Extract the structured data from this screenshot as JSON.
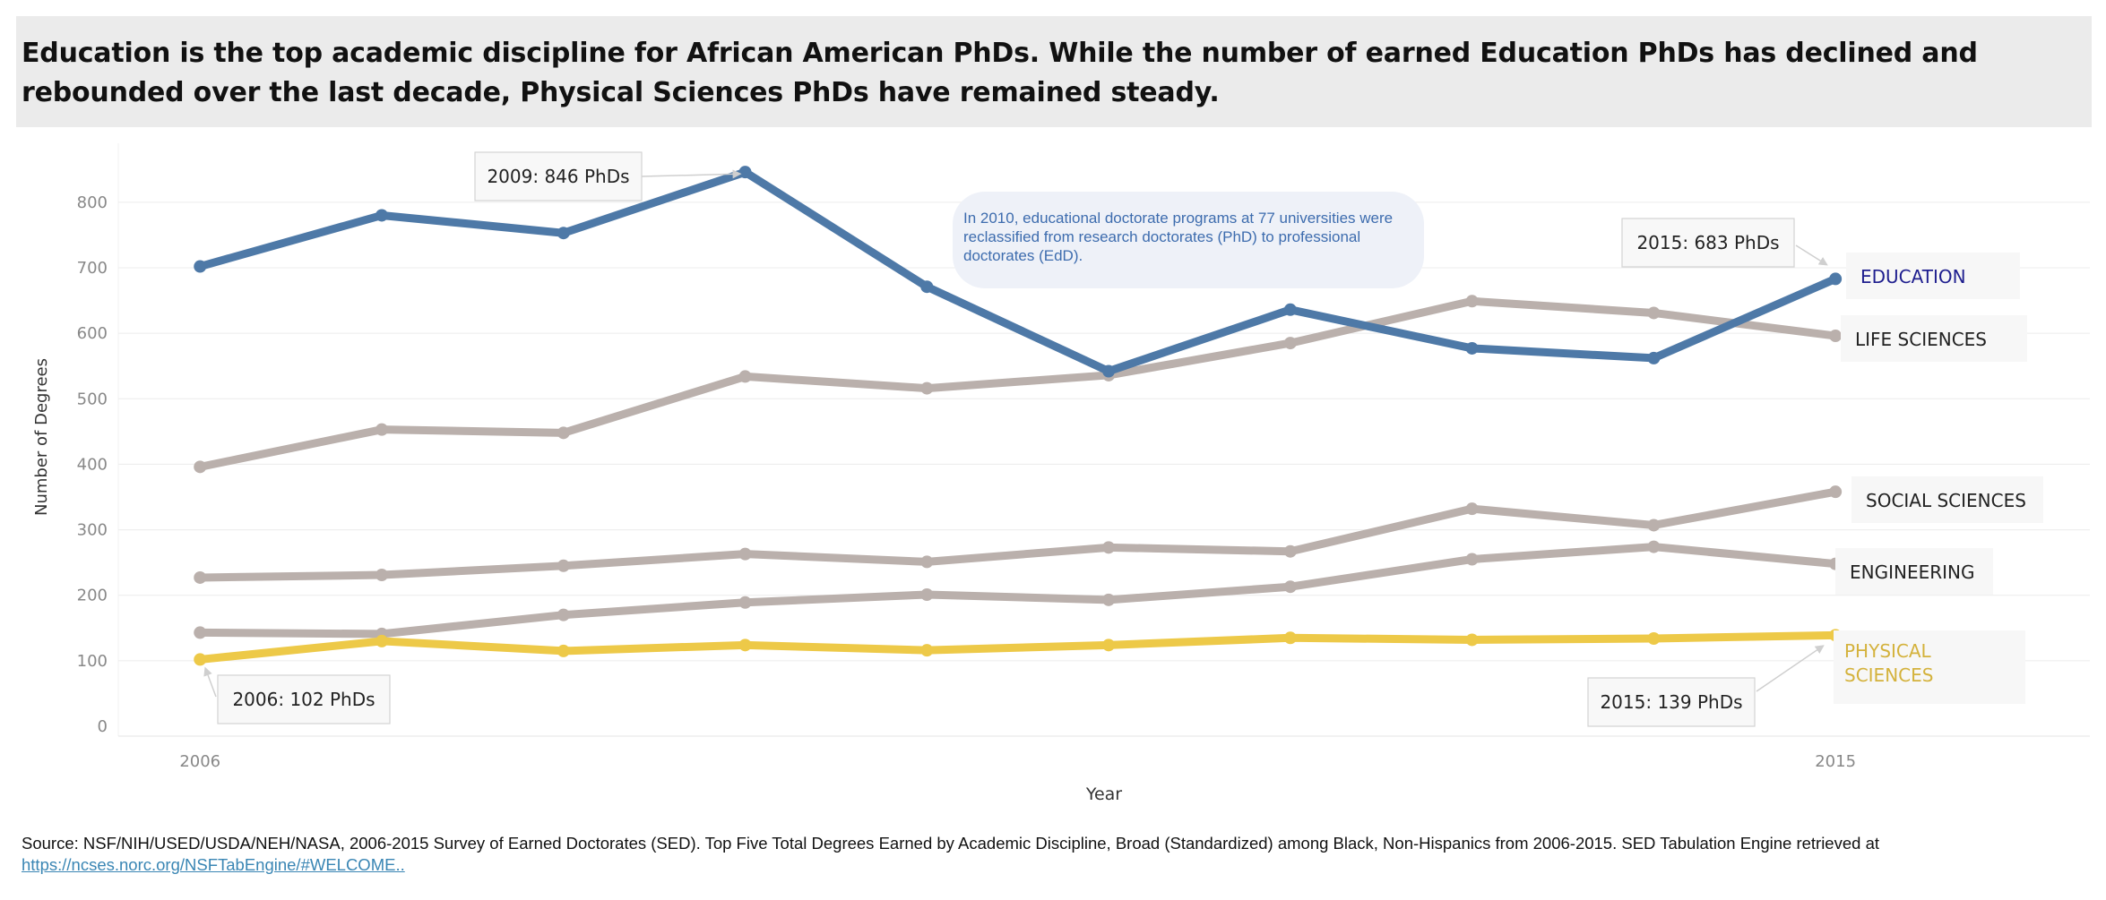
{
  "title": "Education is the top academic discipline for African American PhDs. While the number of earned Education PhDs has declined and rebounded over the last decade, Physical Sciences PhDs have remained steady.",
  "colors": {
    "education": "#4e79a7",
    "other": "#bab0ac",
    "physical": "#edc948",
    "education_label": "#1f1f8f",
    "physical_label": "#d4b23c",
    "grid": "#ececec",
    "tick": "#888888",
    "note_bg": "#eef1f8",
    "note_text": "#3d6cae"
  },
  "chart_data": {
    "type": "line",
    "x": [
      2006,
      2007,
      2008,
      2009,
      2010,
      2011,
      2012,
      2013,
      2014,
      2015
    ],
    "xlim": [
      2005.55,
      2016.4
    ],
    "ylim": [
      -15,
      890
    ],
    "yticks": [
      0,
      100,
      200,
      300,
      400,
      500,
      600,
      700,
      800
    ],
    "xtick_labels": [
      {
        "x": 2006,
        "label": "2006"
      },
      {
        "x": 2015,
        "label": "2015"
      }
    ],
    "xlabel": "Year",
    "ylabel": "Number of Degrees",
    "series": [
      {
        "key": "life",
        "name": "LIFE SCIENCES",
        "values": [
          396,
          453,
          448,
          534,
          516,
          536,
          585,
          649,
          631,
          596
        ]
      },
      {
        "key": "social",
        "name": "SOCIAL SCIENCES",
        "values": [
          227,
          231,
          245,
          263,
          251,
          273,
          267,
          332,
          307,
          358
        ]
      },
      {
        "key": "engineering",
        "name": "ENGINEERING",
        "values": [
          143,
          141,
          170,
          189,
          201,
          193,
          213,
          255,
          274,
          248
        ]
      },
      {
        "key": "physical",
        "name": "PHYSICAL SCIENCES",
        "label_lines": [
          "PHYSICAL",
          "SCIENCES"
        ],
        "values": [
          102,
          130,
          115,
          124,
          116,
          124,
          135,
          132,
          134,
          139
        ]
      },
      {
        "key": "education",
        "name": "EDUCATION",
        "values": [
          702,
          780,
          753,
          846,
          671,
          542,
          636,
          577,
          562,
          683
        ]
      }
    ],
    "annotations": [
      {
        "key": "edu2009",
        "text": "2009: 846 PhDs"
      },
      {
        "key": "edu2015",
        "text": "2015: 683 PhDs"
      },
      {
        "key": "phys2006",
        "text": "2006: 102 PhDs"
      },
      {
        "key": "phys2015",
        "text": "2015: 139 PhDs"
      }
    ],
    "note_lines": [
      "In 2010, educational doctorate programs at 77 universities were",
      "reclassified from research doctorates (PhD) to professional",
      "doctorates (EdD)."
    ]
  },
  "source": {
    "text": "Source: NSF/NIH/USED/USDA/NEH/NASA, 2006-2015 Survey of Earned Doctorates (SED). Top Five Total Degrees Earned by Academic Discipline, Broad (Standardized) among Black, Non-Hispanics from 2006-2015. SED Tabulation Engine retrieved at",
    "link": "https://ncses.norc.org/NSFTabEngine/#WELCOME.."
  }
}
